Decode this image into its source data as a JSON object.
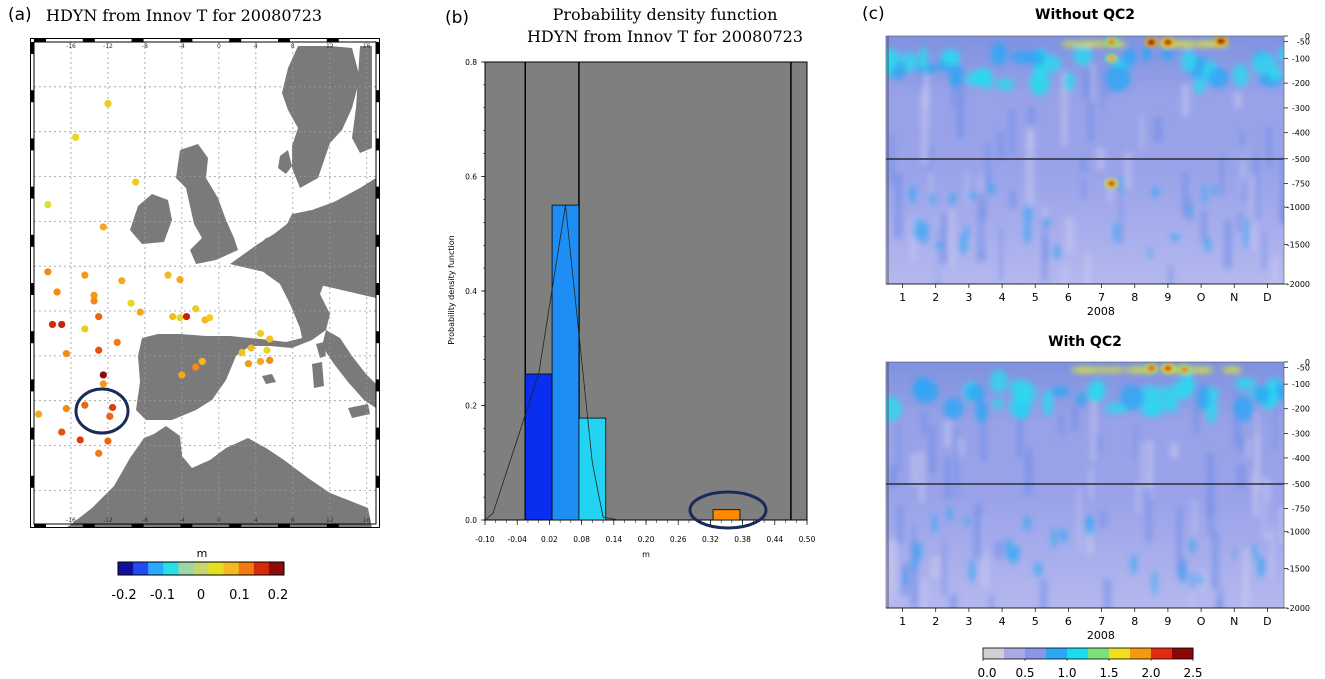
{
  "panels": {
    "a": {
      "letter": "(a)",
      "title": "HDYN from Innov T for 20080723",
      "lon_ticks": [
        "-16",
        "-12",
        "-8",
        "-4",
        "0",
        "4",
        "8",
        "12",
        "16"
      ],
      "colorbar": {
        "unit": "m",
        "ticks": [
          "-0.2",
          "-0.1",
          "0",
          "0.1",
          "0.2"
        ],
        "colors": [
          "#1010a0",
          "#1f4bf0",
          "#2aa9ff",
          "#26e0e6",
          "#9ad6a6",
          "#c6d66a",
          "#e4e020",
          "#f4b820",
          "#f27a10",
          "#d62a0a",
          "#8c0a0a"
        ]
      }
    },
    "b": {
      "letter": "(b)",
      "title_line1": "Probability density function",
      "title_line2": "HDYN from Innov T for 20080723"
    },
    "c": {
      "letter": "(c)",
      "top_title": "Without QC2",
      "bottom_title": "With QC2",
      "month_labels": [
        "1",
        "2",
        "3",
        "4",
        "5",
        "6",
        "7",
        "8",
        "9",
        "O",
        "N",
        "D"
      ],
      "year_label": "2008",
      "depth_labels": [
        "0",
        "-50",
        "-100",
        "-200",
        "-300",
        "-400",
        "-500",
        "-750",
        "-1000",
        "-1500",
        "-2000"
      ],
      "colorbar": {
        "ticks": [
          "0.0",
          "0.5",
          "1.0",
          "1.5",
          "2.0",
          "2.5"
        ],
        "colors": [
          "#d0d0d8",
          "#a9a9e6",
          "#8a96e8",
          "#2aa8f5",
          "#19dcec",
          "#7ee07a",
          "#f0e020",
          "#f59a10",
          "#e22a10",
          "#8c0808"
        ]
      }
    }
  },
  "chart_data": [
    {
      "type": "scatter",
      "panel": "a",
      "title": "HDYN from Innov T for 20080723",
      "xlabel": "",
      "ylabel": "",
      "colorbar_label": "m",
      "colorbar_range": [
        -0.2,
        0.2
      ],
      "xlim": [
        -20,
        17
      ],
      "ylim": [
        25,
        68
      ],
      "points": [
        {
          "lon": -12,
          "lat": 62.5,
          "value": 0.06
        },
        {
          "lon": -15.5,
          "lat": 59.5,
          "value": 0.05
        },
        {
          "lon": -9,
          "lat": 55.5,
          "value": 0.06
        },
        {
          "lon": -18.5,
          "lat": 53.5,
          "value": 0.03
        },
        {
          "lon": -12.5,
          "lat": 51.5,
          "value": 0.09
        },
        {
          "lon": -18.5,
          "lat": 47.5,
          "value": 0.11
        },
        {
          "lon": -14.5,
          "lat": 47.2,
          "value": 0.1
        },
        {
          "lon": -10.5,
          "lat": 46.7,
          "value": 0.09
        },
        {
          "lon": -5.5,
          "lat": 47.2,
          "value": 0.08
        },
        {
          "lon": -4.2,
          "lat": 46.8,
          "value": 0.09
        },
        {
          "lon": -17.5,
          "lat": 45.7,
          "value": 0.11
        },
        {
          "lon": -13.5,
          "lat": 45.4,
          "value": 0.1
        },
        {
          "lon": -13.5,
          "lat": 44.9,
          "value": 0.11
        },
        {
          "lon": -9.5,
          "lat": 44.7,
          "value": 0.05
        },
        {
          "lon": -8.5,
          "lat": 43.9,
          "value": 0.09
        },
        {
          "lon": -13,
          "lat": 43.5,
          "value": 0.13
        },
        {
          "lon": -5,
          "lat": 43.5,
          "value": 0.07
        },
        {
          "lon": -4.2,
          "lat": 43.4,
          "value": 0.05
        },
        {
          "lon": -3.5,
          "lat": 43.5,
          "value": 0.17
        },
        {
          "lon": -2.5,
          "lat": 44.2,
          "value": 0.06
        },
        {
          "lon": -1.5,
          "lat": 43.2,
          "value": 0.08
        },
        {
          "lon": -1.0,
          "lat": 43.4,
          "value": 0.06
        },
        {
          "lon": -18,
          "lat": 42.8,
          "value": 0.16
        },
        {
          "lon": -17,
          "lat": 42.8,
          "value": 0.17
        },
        {
          "lon": -14.5,
          "lat": 42.4,
          "value": 0.06
        },
        {
          "lon": -11,
          "lat": 41.2,
          "value": 0.12
        },
        {
          "lon": -13,
          "lat": 40.5,
          "value": 0.14
        },
        {
          "lon": -16.5,
          "lat": 40.2,
          "value": 0.11
        },
        {
          "lon": -12.5,
          "lat": 38.3,
          "value": 0.25
        },
        {
          "lon": -12.5,
          "lat": 37.5,
          "value": 0.1
        },
        {
          "lon": -16.5,
          "lat": 35.3,
          "value": 0.11
        },
        {
          "lon": -14.5,
          "lat": 35.6,
          "value": 0.13
        },
        {
          "lon": -11.5,
          "lat": 35.4,
          "value": 0.15
        },
        {
          "lon": -11.8,
          "lat": 34.6,
          "value": 0.13
        },
        {
          "lon": -19.5,
          "lat": 34.8,
          "value": 0.09
        },
        {
          "lon": -17,
          "lat": 33.2,
          "value": 0.14
        },
        {
          "lon": -15,
          "lat": 32.5,
          "value": 0.15
        },
        {
          "lon": -12,
          "lat": 32.4,
          "value": 0.13
        },
        {
          "lon": -13,
          "lat": 31.3,
          "value": 0.12
        },
        {
          "lon": -4,
          "lat": 38.3,
          "value": 0.09
        },
        {
          "lon": -2.5,
          "lat": 39.0,
          "value": 0.11
        },
        {
          "lon": -1.8,
          "lat": 39.5,
          "value": 0.08
        },
        {
          "lon": 4.5,
          "lat": 42.0,
          "value": 0.06
        },
        {
          "lon": 5.5,
          "lat": 41.5,
          "value": 0.07
        },
        {
          "lon": 3.5,
          "lat": 40.7,
          "value": 0.08
        },
        {
          "lon": 5.2,
          "lat": 40.5,
          "value": 0.05
        },
        {
          "lon": 2.5,
          "lat": 40.3,
          "value": 0.07
        },
        {
          "lon": 4.5,
          "lat": 39.5,
          "value": 0.09
        },
        {
          "lon": 5.5,
          "lat": 39.6,
          "value": 0.11
        },
        {
          "lon": 3.2,
          "lat": 39.3,
          "value": 0.1
        }
      ]
    },
    {
      "type": "bar",
      "panel": "b",
      "title": "Probability density function\nHDYN from Innov T for 20080723",
      "xlabel": "m",
      "ylabel": "Probability density function",
      "xlim": [
        -0.1,
        0.5
      ],
      "ylim": [
        0.0,
        0.8
      ],
      "x_ticks": [
        -0.1,
        -0.04,
        0.02,
        0.08,
        0.14,
        0.2,
        0.26,
        0.32,
        0.38,
        0.44,
        0.5
      ],
      "y_ticks": [
        0.0,
        0.2,
        0.4,
        0.6,
        0.8
      ],
      "bars": [
        {
          "x0": -0.025,
          "x1": 0.025,
          "value": 0.255,
          "color": "#0a2ef0"
        },
        {
          "x0": 0.025,
          "x1": 0.075,
          "value": 0.55,
          "color": "#1e8ef5"
        },
        {
          "x0": 0.075,
          "x1": 0.125,
          "value": 0.178,
          "color": "#22d4f2"
        },
        {
          "x0": 0.325,
          "x1": 0.375,
          "value": 0.018,
          "color": "#ff8a00"
        }
      ],
      "density_line": {
        "x": [
          -0.1,
          -0.085,
          0.0,
          0.05,
          0.1,
          0.12,
          0.15
        ],
        "y": [
          0.0,
          0.012,
          0.255,
          0.55,
          0.1,
          0.005,
          0.0
        ]
      },
      "vertical_lines": [
        -0.025,
        0.075,
        0.47
      ]
    },
    {
      "type": "heatmap",
      "panel": "c",
      "title": "Without QC2",
      "xlabel": "2008",
      "ylabel": "",
      "x_ticks": [
        "1",
        "2",
        "3",
        "4",
        "5",
        "6",
        "7",
        "8",
        "9",
        "O",
        "N",
        "D"
      ],
      "y_ticks": [
        0,
        -50,
        -100,
        -200,
        -300,
        -400,
        -500,
        -750,
        -1000,
        -1500,
        -2000
      ],
      "colorbar_range": [
        0.0,
        2.5
      ],
      "hotspots": [
        {
          "month": 7.3,
          "depth": -50,
          "value": 2.0
        },
        {
          "month": 7.3,
          "depth": -100,
          "value": 1.9
        },
        {
          "month": 7.3,
          "depth": -750,
          "value": 2.2
        },
        {
          "month": 8.5,
          "depth": -20,
          "value": 2.5
        },
        {
          "month": 9.0,
          "depth": -20,
          "value": 2.4
        },
        {
          "month": 10.6,
          "depth": -10,
          "value": 2.5
        }
      ]
    },
    {
      "type": "heatmap",
      "panel": "c",
      "title": "With QC2",
      "xlabel": "2008",
      "ylabel": "",
      "x_ticks": [
        "1",
        "2",
        "3",
        "4",
        "5",
        "6",
        "7",
        "8",
        "9",
        "O",
        "N",
        "D"
      ],
      "y_ticks": [
        0,
        -50,
        -100,
        -200,
        -300,
        -400,
        -500,
        -750,
        -1000,
        -1500,
        -2000
      ],
      "colorbar_range": [
        0.0,
        2.5
      ],
      "hotspots": [
        {
          "month": 8.5,
          "depth": -20,
          "value": 2.1
        },
        {
          "month": 9.0,
          "depth": -20,
          "value": 2.2
        },
        {
          "month": 9.5,
          "depth": -30,
          "value": 2.0
        }
      ]
    }
  ]
}
